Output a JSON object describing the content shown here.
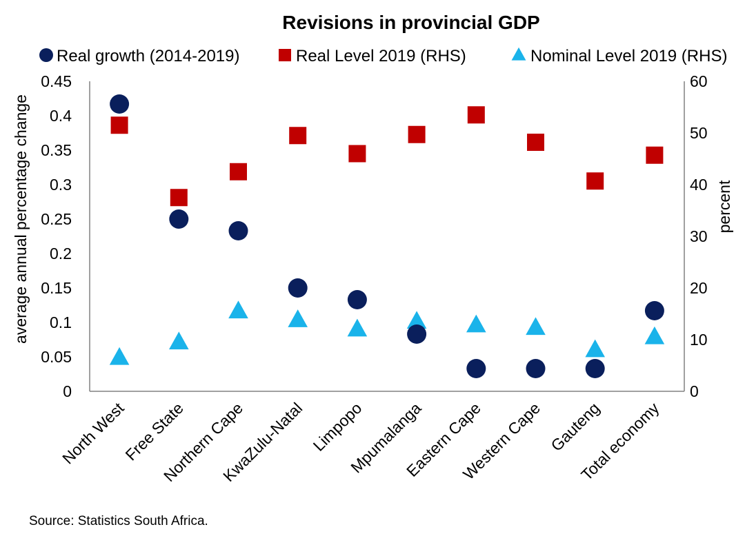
{
  "chart_data": {
    "type": "scatter",
    "title": "Revisions in provincial GDP",
    "ylabel": "average annual percentage change",
    "y2label": "percent",
    "ylim": [
      0,
      0.45
    ],
    "y2lim": [
      0,
      60
    ],
    "yticks": [
      "0",
      "0.05",
      "0.1",
      "0.15",
      "0.2",
      "0.25",
      "0.3",
      "0.35",
      "0.4",
      "0.45"
    ],
    "y2ticks": [
      "0",
      "10",
      "20",
      "30",
      "40",
      "50",
      "60"
    ],
    "categories": [
      "North West",
      "Free State",
      "Northern Cape",
      "KwaZulu-Natal",
      "Limpopo",
      "Mpumalanga",
      "Eastern Cape",
      "Western Cape",
      "Gauteng",
      "Total economy"
    ],
    "legend_position": "top",
    "grid": false,
    "series": [
      {
        "name": "Real growth (2014-2019)",
        "axis": "left",
        "marker": "circle",
        "color": "#0a1f5c",
        "values": [
          0.417,
          0.25,
          0.233,
          0.15,
          0.133,
          0.083,
          0.033,
          0.033,
          0.033,
          0.117
        ]
      },
      {
        "name": "Real Level 2019 (RHS)",
        "axis": "right",
        "marker": "square",
        "color": "#c00000",
        "values": [
          51.5,
          37.5,
          42.5,
          49.5,
          46.0,
          49.7,
          53.5,
          48.2,
          40.7,
          45.7
        ]
      },
      {
        "name": "Nominal Level 2019 (RHS)",
        "axis": "right",
        "marker": "triangle",
        "color": "#1ab3ea",
        "values": [
          6.5,
          9.5,
          15.5,
          13.8,
          12.0,
          13.5,
          12.8,
          12.3,
          8.0,
          10.5
        ]
      }
    ]
  },
  "footer": {
    "source": "Source: Statistics South Africa."
  }
}
